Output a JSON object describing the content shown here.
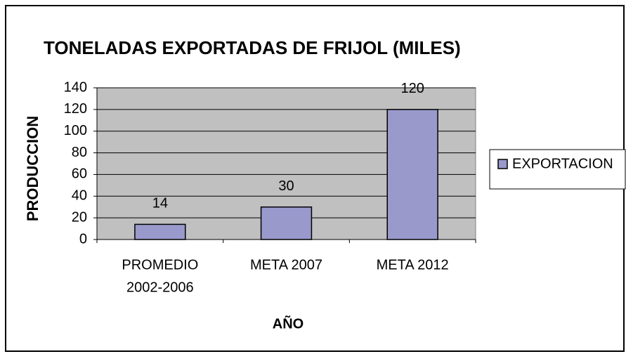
{
  "chart_data": {
    "type": "bar",
    "title": "TONELADAS EXPORTADAS DE FRIJOL  (MILES)",
    "categories": [
      [
        "PROMEDIO",
        "2002-2006"
      ],
      [
        "META 2007"
      ],
      [
        "META 2012"
      ]
    ],
    "series": [
      {
        "name": "EXPORTACION",
        "color": "#9999cc",
        "values": [
          14,
          30,
          120
        ]
      }
    ],
    "ylim": [
      0,
      140
    ],
    "yticks": [
      0,
      20,
      40,
      60,
      80,
      100,
      120,
      140
    ],
    "grid": true,
    "xlabel": "AÑO",
    "ylabel": "PRODUCCION",
    "legend": "right"
  }
}
